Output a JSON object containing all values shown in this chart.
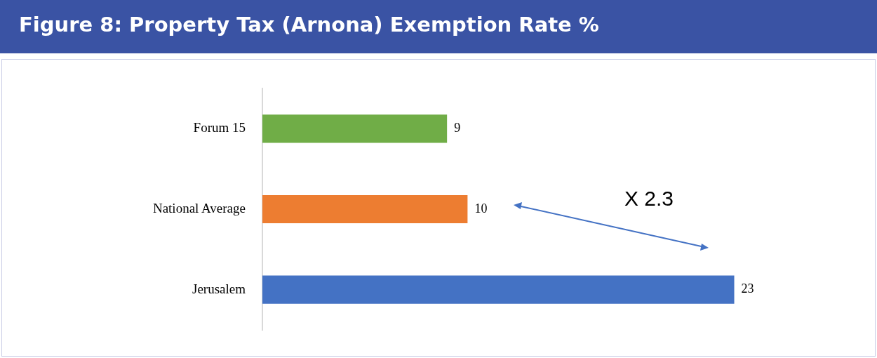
{
  "chart_data": {
    "type": "bar",
    "orientation": "horizontal",
    "title": "Figure 8: Property Tax (Arnona) Exemption Rate %",
    "categories": [
      "Forum 15",
      "National Average",
      "Jerusalem"
    ],
    "values": [
      9,
      10,
      23
    ],
    "colors": [
      "#70ad47",
      "#ed7d31",
      "#4472c4"
    ],
    "data_labels": true,
    "legend": false,
    "annotations": [
      "X 2.3"
    ]
  }
}
